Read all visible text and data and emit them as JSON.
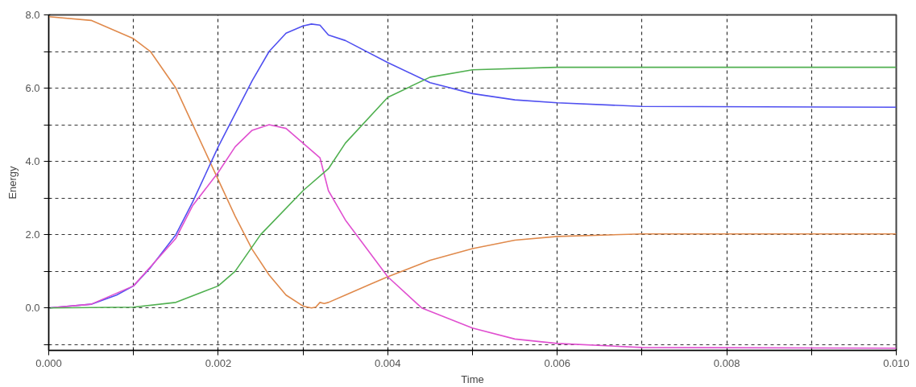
{
  "chart_data": {
    "type": "line",
    "xlabel": "Time",
    "ylabel": "Energy",
    "xlim": [
      0,
      0.01
    ],
    "ylim": [
      -1.16,
      8
    ],
    "xticks": [
      {
        "value": 0,
        "label": "0.000"
      },
      {
        "value": 0.001,
        "label": null
      },
      {
        "value": 0.002,
        "label": "0.002"
      },
      {
        "value": 0.003,
        "label": null
      },
      {
        "value": 0.004,
        "label": "0.004"
      },
      {
        "value": 0.005,
        "label": null
      },
      {
        "value": 0.006,
        "label": "0.006"
      },
      {
        "value": 0.007,
        "label": null
      },
      {
        "value": 0.008,
        "label": "0.008"
      },
      {
        "value": 0.009,
        "label": null
      },
      {
        "value": 0.01,
        "label": "0.010"
      }
    ],
    "yticks": [
      {
        "value": -1,
        "label": null
      },
      {
        "value": 0,
        "label": "0.0"
      },
      {
        "value": 1,
        "label": null
      },
      {
        "value": 2,
        "label": "2.0"
      },
      {
        "value": 3,
        "label": null
      },
      {
        "value": 4,
        "label": "4.0"
      },
      {
        "value": 5,
        "label": null
      },
      {
        "value": 6,
        "label": "6.0"
      },
      {
        "value": 7,
        "label": null
      },
      {
        "value": 8,
        "label": "8.0"
      }
    ],
    "grid": true,
    "line_style": "solid",
    "marker": "none",
    "series": [
      {
        "color": "#e08a4c",
        "x": [
          0,
          0.0005,
          0.001,
          0.0012,
          0.0015,
          0.0017,
          0.0019,
          0.002,
          0.0022,
          0.0024,
          0.0026,
          0.0028,
          0.003,
          0.0031,
          0.00315,
          0.0032,
          0.00325,
          0.0033,
          0.0035,
          0.0038,
          0.004,
          0.0045,
          0.005,
          0.0055,
          0.006,
          0.007,
          0.01
        ],
        "values": [
          7.95,
          7.85,
          7.35,
          7.0,
          6.0,
          5.0,
          4.0,
          3.5,
          2.5,
          1.6,
          0.9,
          0.35,
          0.05,
          0.0,
          0.02,
          0.15,
          0.12,
          0.15,
          0.35,
          0.65,
          0.85,
          1.3,
          1.62,
          1.85,
          1.95,
          2.02,
          2.02
        ]
      },
      {
        "color": "#5050f0",
        "x": [
          0,
          0.0005,
          0.0008,
          0.001,
          0.0012,
          0.0015,
          0.0017,
          0.002,
          0.0022,
          0.0024,
          0.0026,
          0.0028,
          0.003,
          0.0031,
          0.0032,
          0.0033,
          0.0035,
          0.004,
          0.0045,
          0.005,
          0.0055,
          0.006,
          0.007,
          0.01
        ],
        "values": [
          0,
          0.1,
          0.35,
          0.6,
          1.1,
          2.0,
          2.9,
          4.4,
          5.3,
          6.2,
          7.0,
          7.5,
          7.7,
          7.75,
          7.72,
          7.45,
          7.3,
          6.7,
          6.15,
          5.85,
          5.68,
          5.6,
          5.5,
          5.48
        ]
      },
      {
        "color": "#e050d0",
        "x": [
          0,
          0.0005,
          0.001,
          0.0015,
          0.0017,
          0.002,
          0.0022,
          0.0024,
          0.0026,
          0.0028,
          0.003,
          0.0032,
          0.0033,
          0.0035,
          0.004,
          0.0044,
          0.005,
          0.0055,
          0.006,
          0.007,
          0.01
        ],
        "values": [
          0,
          0.1,
          0.6,
          1.9,
          2.8,
          3.7,
          4.4,
          4.85,
          5.0,
          4.9,
          4.5,
          4.1,
          3.2,
          2.4,
          0.85,
          0.0,
          -0.55,
          -0.85,
          -0.97,
          -1.08,
          -1.1
        ]
      },
      {
        "color": "#50b050",
        "x": [
          0,
          0.001,
          0.0015,
          0.002,
          0.0022,
          0.0025,
          0.003,
          0.0033,
          0.0035,
          0.004,
          0.0045,
          0.005,
          0.006,
          0.01
        ],
        "values": [
          0,
          0.02,
          0.15,
          0.6,
          1.0,
          2.0,
          3.2,
          3.8,
          4.5,
          5.75,
          6.3,
          6.5,
          6.57,
          6.57
        ]
      }
    ]
  }
}
